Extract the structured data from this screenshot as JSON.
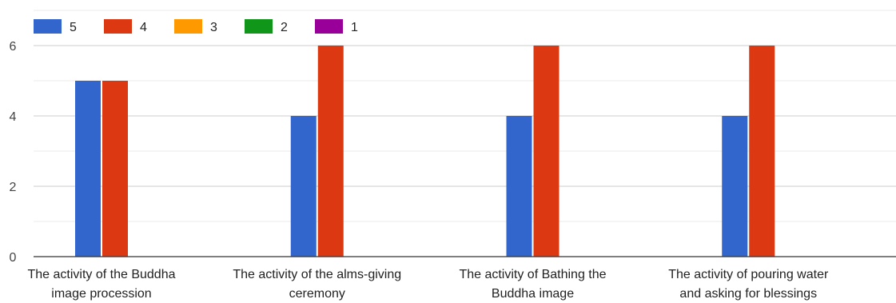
{
  "chart_data": {
    "type": "bar",
    "categories": [
      [
        "The activity of the Buddha",
        "image procession"
      ],
      [
        "The activity of the alms-giving",
        "ceremony"
      ],
      [
        "The activity of Bathing the",
        "Buddha image"
      ],
      [
        "The activity of pouring water",
        "and asking for blessings"
      ]
    ],
    "series": [
      {
        "name": "5",
        "color": "#3366cc",
        "values": [
          5,
          4,
          4,
          4
        ]
      },
      {
        "name": "4",
        "color": "#dc3912",
        "values": [
          5,
          6,
          6,
          6
        ]
      },
      {
        "name": "3",
        "color": "#ff9900",
        "values": [
          0,
          0,
          0,
          0
        ]
      },
      {
        "name": "2",
        "color": "#109618",
        "values": [
          0,
          0,
          0,
          0
        ]
      },
      {
        "name": "1",
        "color": "#990099",
        "values": [
          0,
          0,
          0,
          0
        ]
      }
    ],
    "y_ticks": [
      "0",
      "2",
      "4",
      "6"
    ],
    "ylim": [
      0,
      6
    ],
    "grid": true,
    "legend_position": "top-left"
  }
}
